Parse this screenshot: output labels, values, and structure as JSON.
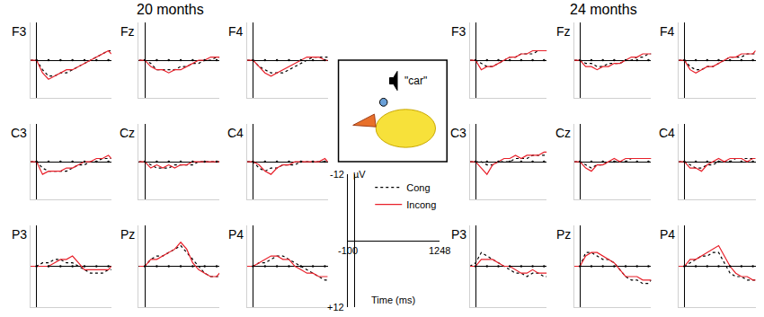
{
  "chart_data": [
    {
      "type": "line",
      "title": "20 months",
      "xlim": [
        -100,
        1248
      ],
      "ylim": [
        12,
        -12
      ],
      "xticks": [
        0,
        200,
        400,
        600,
        800,
        1000,
        1200
      ],
      "tick_labels": false,
      "grid": false,
      "x": [
        -100,
        0,
        100,
        200,
        300,
        400,
        500,
        600,
        700,
        800,
        900,
        1000,
        1100,
        1200,
        1248
      ],
      "panels": [
        {
          "title": "F3",
          "series": [
            {
              "name": "Cong",
              "color": "#000000",
              "line_style": "dot",
              "values": [
                0,
                0,
                3,
                5,
                5,
                4,
                4,
                3,
                2,
                1,
                0,
                -1,
                -2,
                -3,
                -3
              ]
            },
            {
              "name": "Incong",
              "color": "#e8202a",
              "line_style": "solid",
              "values": [
                0,
                0,
                4,
                6,
                5,
                4,
                3,
                3,
                2,
                1,
                0,
                -1,
                -2,
                -3,
                -2
              ]
            }
          ]
        },
        {
          "title": "Fz",
          "series": [
            {
              "name": "Cong",
              "color": "#000000",
              "line_style": "dot",
              "values": [
                0,
                0,
                1,
                3,
                3,
                3,
                3,
                2,
                2,
                1,
                1,
                0,
                0,
                -1,
                -1
              ]
            },
            {
              "name": "Incong",
              "color": "#e8202a",
              "line_style": "solid",
              "values": [
                0,
                0,
                2,
                3,
                3,
                4,
                3,
                3,
                2,
                1,
                0,
                0,
                -1,
                -1,
                -1
              ]
            }
          ]
        },
        {
          "title": "F4",
          "series": [
            {
              "name": "Cong",
              "color": "#000000",
              "line_style": "dot",
              "values": [
                0,
                0,
                2,
                3,
                4,
                4,
                4,
                3,
                2,
                1,
                0,
                -1,
                -1,
                -1,
                -1
              ]
            },
            {
              "name": "Incong",
              "color": "#e8202a",
              "line_style": "solid",
              "values": [
                0,
                0,
                2,
                4,
                5,
                4,
                3,
                2,
                1,
                0,
                -1,
                -1,
                -1,
                0,
                0
              ]
            }
          ]
        },
        {
          "title": "C3",
          "series": [
            {
              "name": "Cong",
              "color": "#000000",
              "line_style": "dot",
              "values": [
                0,
                0,
                2,
                3,
                3,
                3,
                3,
                2,
                1,
                1,
                0,
                0,
                -1,
                -1,
                -1
              ]
            },
            {
              "name": "Incong",
              "color": "#e8202a",
              "line_style": "solid",
              "values": [
                0,
                0,
                4,
                3,
                3,
                3,
                2,
                2,
                1,
                0,
                0,
                -1,
                -1,
                -2,
                -1
              ]
            }
          ]
        },
        {
          "title": "Cz",
          "series": [
            {
              "name": "Cong",
              "color": "#000000",
              "line_style": "dot",
              "values": [
                0,
                0,
                1,
                2,
                2,
                2,
                1,
                1,
                1,
                1,
                0,
                0,
                0,
                0,
                0
              ]
            },
            {
              "name": "Incong",
              "color": "#e8202a",
              "line_style": "solid",
              "values": [
                0,
                0,
                2,
                1,
                2,
                1,
                2,
                1,
                1,
                0,
                0,
                0,
                0,
                0,
                0
              ]
            }
          ]
        },
        {
          "title": "C4",
          "series": [
            {
              "name": "Cong",
              "color": "#000000",
              "line_style": "dot",
              "values": [
                0,
                0,
                2,
                3,
                2,
                2,
                1,
                1,
                1,
                0,
                0,
                0,
                0,
                0,
                0
              ]
            },
            {
              "name": "Incong",
              "color": "#e8202a",
              "line_style": "solid",
              "values": [
                0,
                0,
                1,
                3,
                4,
                2,
                1,
                1,
                0,
                0,
                0,
                0,
                0,
                -1,
                0
              ]
            }
          ]
        },
        {
          "title": "P3",
          "series": [
            {
              "name": "Cong",
              "color": "#000000",
              "line_style": "dot",
              "values": [
                0,
                0,
                -1,
                -1,
                -2,
                -2,
                -1,
                -1,
                0,
                1,
                2,
                2,
                2,
                1,
                1
              ]
            },
            {
              "name": "Incong",
              "color": "#e8202a",
              "line_style": "solid",
              "values": [
                0,
                0,
                0,
                0,
                -1,
                -2,
                -2,
                -3,
                -1,
                1,
                1,
                1,
                1,
                1,
                0
              ]
            }
          ]
        },
        {
          "title": "Pz",
          "series": [
            {
              "name": "Cong",
              "color": "#000000",
              "line_style": "dot",
              "values": [
                0,
                0,
                -2,
                -3,
                -3,
                -4,
                -5,
                -6,
                -4,
                -2,
                0,
                2,
                3,
                3,
                3
              ]
            },
            {
              "name": "Incong",
              "color": "#e8202a",
              "line_style": "solid",
              "values": [
                0,
                0,
                -2,
                -2,
                -3,
                -4,
                -5,
                -7,
                -5,
                -1,
                1,
                2,
                3,
                3,
                2
              ]
            }
          ]
        },
        {
          "title": "P4",
          "series": [
            {
              "name": "Cong",
              "color": "#000000",
              "line_style": "dot",
              "values": [
                0,
                0,
                -1,
                -1,
                -2,
                -3,
                -3,
                -2,
                -1,
                0,
                1,
                2,
                3,
                4,
                4
              ]
            },
            {
              "name": "Incong",
              "color": "#e8202a",
              "line_style": "solid",
              "values": [
                0,
                0,
                -1,
                -2,
                -3,
                -3,
                -2,
                -2,
                0,
                1,
                2,
                2,
                3,
                3,
                3
              ]
            }
          ]
        }
      ]
    },
    {
      "type": "line",
      "title": "24 months",
      "xlim": [
        -100,
        1248
      ],
      "ylim": [
        12,
        -12
      ],
      "xticks": [
        0,
        200,
        400,
        600,
        800,
        1000,
        1200
      ],
      "tick_labels": false,
      "grid": false,
      "x": [
        -100,
        0,
        100,
        200,
        300,
        400,
        500,
        600,
        700,
        800,
        900,
        1000,
        1100,
        1200,
        1248
      ],
      "panels": [
        {
          "title": "F3",
          "series": [
            {
              "name": "Cong",
              "color": "#000000",
              "line_style": "dot",
              "values": [
                0,
                0,
                1,
                2,
                2,
                1,
                0,
                -1,
                -1,
                -2,
                -2,
                -2,
                -3,
                -3,
                -3
              ]
            },
            {
              "name": "Incong",
              "color": "#e8202a",
              "line_style": "solid",
              "values": [
                0,
                0,
                3,
                2,
                2,
                1,
                0,
                -1,
                -1,
                -2,
                -2,
                -3,
                -3,
                -3,
                -3
              ]
            }
          ]
        },
        {
          "title": "Fz",
          "series": [
            {
              "name": "Cong",
              "color": "#000000",
              "line_style": "dot",
              "values": [
                0,
                0,
                1,
                1,
                2,
                2,
                1,
                1,
                1,
                0,
                0,
                -1,
                -1,
                -2,
                -2
              ]
            },
            {
              "name": "Incong",
              "color": "#e8202a",
              "line_style": "solid",
              "values": [
                0,
                0,
                2,
                2,
                3,
                2,
                2,
                1,
                1,
                0,
                -1,
                -1,
                -2,
                -2,
                -2
              ]
            }
          ]
        },
        {
          "title": "F4",
          "series": [
            {
              "name": "Cong",
              "color": "#000000",
              "line_style": "dot",
              "values": [
                0,
                0,
                2,
                3,
                3,
                2,
                2,
                1,
                0,
                -1,
                -1,
                -1,
                -2,
                -2,
                -2
              ]
            },
            {
              "name": "Incong",
              "color": "#e8202a",
              "line_style": "solid",
              "values": [
                0,
                0,
                3,
                4,
                3,
                2,
                2,
                1,
                0,
                -1,
                -1,
                -2,
                -2,
                -2,
                -3
              ]
            }
          ]
        },
        {
          "title": "C3",
          "series": [
            {
              "name": "Cong",
              "color": "#000000",
              "line_style": "dot",
              "values": [
                0,
                0,
                0,
                1,
                1,
                0,
                0,
                0,
                -1,
                -1,
                -1,
                -2,
                -2,
                -2,
                -2
              ]
            },
            {
              "name": "Incong",
              "color": "#e8202a",
              "line_style": "solid",
              "values": [
                0,
                0,
                2,
                4,
                1,
                0,
                -1,
                -1,
                -2,
                -1,
                -2,
                -2,
                -2,
                -3,
                -3
              ]
            }
          ]
        },
        {
          "title": "Cz",
          "series": [
            {
              "name": "Cong",
              "color": "#000000",
              "line_style": "dot",
              "values": [
                0,
                0,
                1,
                2,
                1,
                1,
                0,
                0,
                0,
                0,
                -1,
                -1,
                -1,
                -1,
                -1
              ]
            },
            {
              "name": "Incong",
              "color": "#e8202a",
              "line_style": "solid",
              "values": [
                0,
                0,
                2,
                3,
                1,
                1,
                0,
                -1,
                0,
                -1,
                -1,
                -1,
                -1,
                -1,
                -1
              ]
            }
          ]
        },
        {
          "title": "C4",
          "series": [
            {
              "name": "Cong",
              "color": "#000000",
              "line_style": "dot",
              "values": [
                0,
                0,
                1,
                2,
                2,
                1,
                1,
                0,
                0,
                0,
                -1,
                -1,
                -1,
                -1,
                -1
              ]
            },
            {
              "name": "Incong",
              "color": "#e8202a",
              "line_style": "solid",
              "values": [
                0,
                0,
                2,
                2,
                3,
                1,
                0,
                -1,
                0,
                -1,
                -1,
                -1,
                0,
                -1,
                -1
              ]
            }
          ]
        },
        {
          "title": "P3",
          "series": [
            {
              "name": "Cong",
              "color": "#000000",
              "line_style": "dot",
              "values": [
                0,
                -1,
                -4,
                -3,
                -2,
                -1,
                0,
                1,
                2,
                2,
                3,
                2,
                2,
                3,
                3
              ]
            },
            {
              "name": "Incong",
              "color": "#e8202a",
              "line_style": "solid",
              "values": [
                0,
                0,
                -2,
                -2,
                -2,
                -1,
                0,
                0,
                1,
                2,
                2,
                1,
                2,
                2,
                2
              ]
            }
          ]
        },
        {
          "title": "Pz",
          "series": [
            {
              "name": "Cong",
              "color": "#000000",
              "line_style": "dot",
              "values": [
                0,
                0,
                -4,
                -4,
                -3,
                -2,
                -2,
                -1,
                1,
                3,
                4,
                4,
                5,
                5,
                4
              ]
            },
            {
              "name": "Incong",
              "color": "#e8202a",
              "line_style": "solid",
              "values": [
                0,
                0,
                -3,
                -4,
                -4,
                -3,
                -2,
                -1,
                1,
                3,
                3,
                3,
                4,
                4,
                4
              ]
            }
          ]
        },
        {
          "title": "P4",
          "series": [
            {
              "name": "Cong",
              "color": "#000000",
              "line_style": "dot",
              "values": [
                0,
                0,
                -1,
                -2,
                -3,
                -3,
                -4,
                -4,
                -1,
                2,
                3,
                3,
                4,
                4,
                4
              ]
            },
            {
              "name": "Incong",
              "color": "#e8202a",
              "line_style": "solid",
              "values": [
                0,
                0,
                -2,
                -2,
                -3,
                -4,
                -5,
                -6,
                -3,
                0,
                2,
                3,
                3,
                4,
                4
              ]
            }
          ]
        }
      ]
    },
    {
      "type": "axis_key",
      "xlim": [
        -100,
        1248
      ],
      "ylim": [
        12,
        -12
      ],
      "xticks": [
        -100,
        1248
      ],
      "yticks": [
        -12,
        {
          "value": 12,
          "label": "+12"
        }
      ],
      "x_label": "Time (ms)",
      "y_label": "µV",
      "legend": "upper right",
      "annotations": [
        "\"car\""
      ]
    }
  ]
}
